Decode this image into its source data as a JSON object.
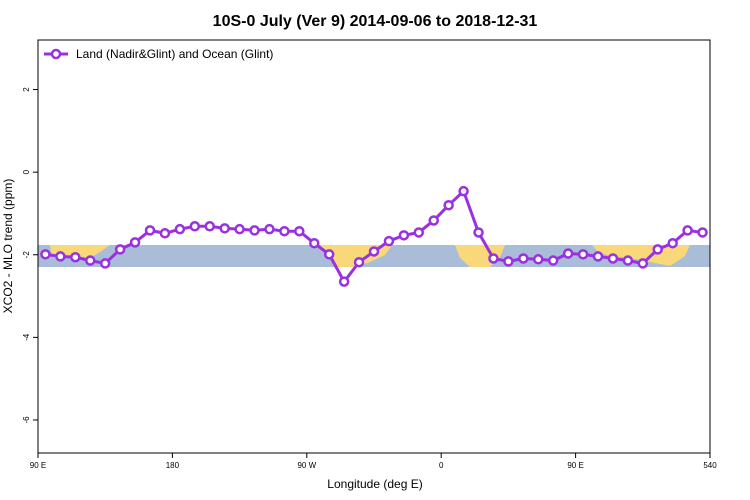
{
  "chart_data": {
    "type": "line",
    "title": "10S-0 July (Ver 9)   2014-09-06 to 2018-12-31",
    "x_label": "Longitude (deg E)",
    "y_label": "XCO2 - MLO trend (ppm)",
    "x": [
      95,
      105,
      115,
      125,
      135,
      145,
      155,
      165,
      175,
      185,
      195,
      205,
      215,
      225,
      235,
      245,
      255,
      265,
      275,
      285,
      295,
      305,
      315,
      325,
      335,
      345,
      355,
      365,
      375,
      385,
      395,
      405,
      415,
      425,
      435,
      445,
      455,
      465,
      475,
      485,
      495,
      505,
      515,
      525,
      535
    ],
    "series": [
      {
        "name": "Land (Nadir&Glint) and Ocean (Glint)",
        "color": "#9b30e0",
        "values": [
          -1.99,
          -2.04,
          -2.06,
          -2.14,
          -2.21,
          -1.87,
          -1.7,
          -1.41,
          -1.48,
          -1.38,
          -1.31,
          -1.31,
          -1.36,
          -1.38,
          -1.41,
          -1.38,
          -1.43,
          -1.43,
          -1.72,
          -1.99,
          -2.65,
          -2.18,
          -1.92,
          -1.67,
          -1.53,
          -1.46,
          -1.17,
          -0.8,
          -0.46,
          -1.46,
          -2.09,
          -2.16,
          -2.09,
          -2.11,
          -2.14,
          -1.97,
          -1.99,
          -2.04,
          -2.09,
          -2.14,
          -2.21,
          -1.87,
          -1.72,
          -1.41,
          -1.46
        ]
      }
    ],
    "xlim": [
      90,
      540
    ],
    "xticks": [
      {
        "value": 90,
        "label": "90 E"
      },
      180,
      {
        "value": 270,
        "label": "90 W"
      },
      {
        "value": 360,
        "label": "0"
      },
      {
        "value": 450,
        "label": "90 E"
      },
      540
    ],
    "ylim": [
      -6.8,
      3.2
    ],
    "yticks": [
      2,
      0,
      -2,
      -4,
      -6
    ],
    "legend": "top-left"
  }
}
